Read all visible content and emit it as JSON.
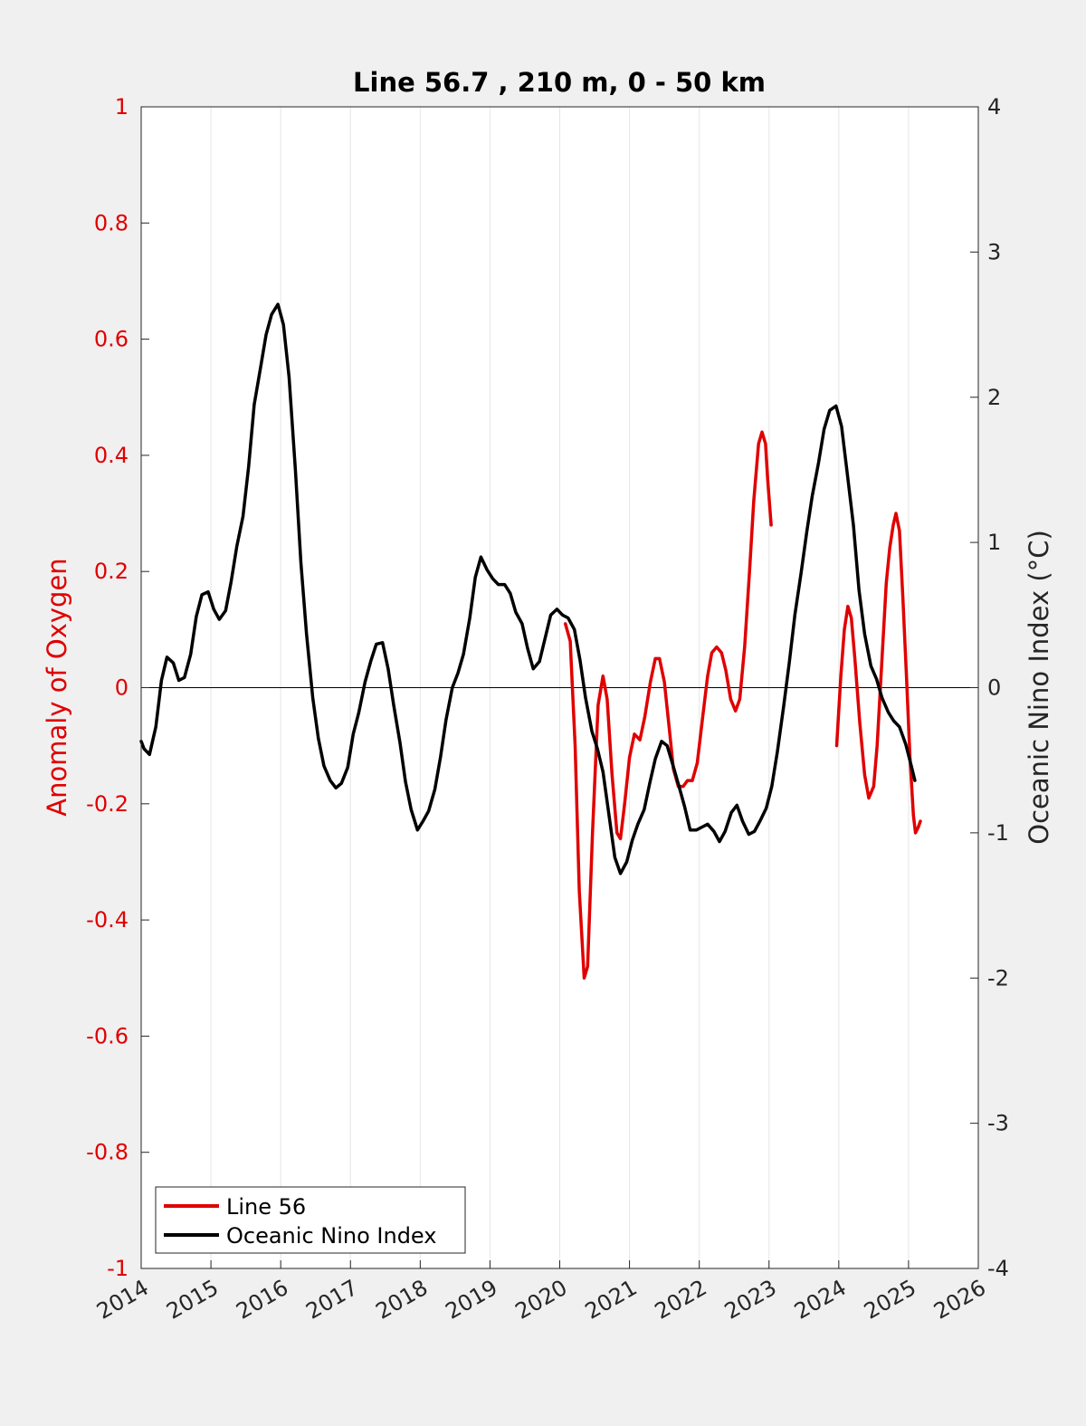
{
  "chart_data": {
    "type": "line",
    "title": "Line 56.7 , 210 m, 0 - 50 km",
    "ylabel_left": "Anomaly of Oxygen",
    "ylabel_right": "Oceanic Nino Index (°C)",
    "xlim": [
      2014,
      2026
    ],
    "ylim_left": [
      -1,
      1
    ],
    "ylim_right": [
      -4,
      4
    ],
    "x_ticks": [
      "2014",
      "2015",
      "2016",
      "2017",
      "2018",
      "2019",
      "2020",
      "2021",
      "2022",
      "2023",
      "2024",
      "2025",
      "2026"
    ],
    "y_left_ticks": [
      "-1",
      "-0.8",
      "-0.6",
      "-0.4",
      "-0.2",
      "0",
      "0.2",
      "0.4",
      "0.6",
      "0.8",
      "1"
    ],
    "y_right_ticks": [
      "-4",
      "-3",
      "-2",
      "-1",
      "0",
      "1",
      "2",
      "3",
      "4"
    ],
    "grid": "vertical",
    "zero_line": true,
    "legend_position": "bottom-left",
    "series": [
      {
        "name": "Line 56",
        "axis": "left",
        "color": "#e00000",
        "segments": [
          [
            [
              2020.08,
              0.11
            ],
            [
              2020.15,
              0.08
            ],
            [
              2020.22,
              -0.1
            ],
            [
              2020.28,
              -0.35
            ],
            [
              2020.35,
              -0.5
            ],
            [
              2020.4,
              -0.48
            ],
            [
              2020.47,
              -0.25
            ],
            [
              2020.55,
              -0.03
            ],
            [
              2020.62,
              0.02
            ],
            [
              2020.68,
              -0.02
            ],
            [
              2020.75,
              -0.15
            ],
            [
              2020.82,
              -0.25
            ],
            [
              2020.87,
              -0.26
            ],
            [
              2020.93,
              -0.2
            ],
            [
              2021.0,
              -0.12
            ],
            [
              2021.07,
              -0.08
            ],
            [
              2021.15,
              -0.09
            ],
            [
              2021.22,
              -0.05
            ],
            [
              2021.3,
              0.01
            ],
            [
              2021.37,
              0.05
            ],
            [
              2021.43,
              0.05
            ],
            [
              2021.5,
              0.01
            ],
            [
              2021.57,
              -0.07
            ],
            [
              2021.63,
              -0.14
            ],
            [
              2021.7,
              -0.17
            ],
            [
              2021.77,
              -0.17
            ],
            [
              2021.83,
              -0.16
            ],
            [
              2021.9,
              -0.16
            ],
            [
              2021.97,
              -0.13
            ],
            [
              2022.05,
              -0.05
            ],
            [
              2022.12,
              0.02
            ],
            [
              2022.18,
              0.06
            ],
            [
              2022.25,
              0.07
            ],
            [
              2022.32,
              0.06
            ],
            [
              2022.38,
              0.03
            ],
            [
              2022.45,
              -0.02
            ],
            [
              2022.52,
              -0.04
            ],
            [
              2022.58,
              -0.02
            ],
            [
              2022.65,
              0.07
            ],
            [
              2022.72,
              0.2
            ],
            [
              2022.78,
              0.32
            ],
            [
              2022.85,
              0.42
            ],
            [
              2022.9,
              0.44
            ],
            [
              2022.95,
              0.42
            ],
            [
              2022.98,
              0.36
            ],
            [
              2023.03,
              0.28
            ]
          ],
          [
            [
              2023.97,
              -0.1
            ],
            [
              2024.03,
              0.02
            ],
            [
              2024.08,
              0.1
            ],
            [
              2024.13,
              0.14
            ],
            [
              2024.18,
              0.12
            ],
            [
              2024.23,
              0.05
            ],
            [
              2024.3,
              -0.06
            ],
            [
              2024.37,
              -0.15
            ],
            [
              2024.43,
              -0.19
            ],
            [
              2024.5,
              -0.17
            ],
            [
              2024.55,
              -0.1
            ],
            [
              2024.62,
              0.05
            ],
            [
              2024.68,
              0.18
            ],
            [
              2024.73,
              0.24
            ],
            [
              2024.78,
              0.28
            ],
            [
              2024.82,
              0.3
            ],
            [
              2024.87,
              0.27
            ],
            [
              2024.92,
              0.15
            ],
            [
              2024.97,
              0.02
            ],
            [
              2025.02,
              -0.12
            ],
            [
              2025.07,
              -0.22
            ],
            [
              2025.1,
              -0.25
            ],
            [
              2025.14,
              -0.24
            ],
            [
              2025.17,
              -0.23
            ]
          ]
        ]
      },
      {
        "name": "Oceanic Nino Index",
        "axis": "right",
        "color": "#000000",
        "segments": [
          [
            [
              2014.0,
              -0.37
            ],
            [
              2014.04,
              -0.42
            ],
            [
              2014.12,
              -0.46
            ],
            [
              2014.21,
              -0.27
            ],
            [
              2014.29,
              0.05
            ],
            [
              2014.37,
              0.21
            ],
            [
              2014.46,
              0.17
            ],
            [
              2014.54,
              0.05
            ],
            [
              2014.62,
              0.07
            ],
            [
              2014.71,
              0.23
            ],
            [
              2014.79,
              0.49
            ],
            [
              2014.87,
              0.64
            ],
            [
              2014.96,
              0.66
            ],
            [
              2015.04,
              0.54
            ],
            [
              2015.12,
              0.47
            ],
            [
              2015.21,
              0.53
            ],
            [
              2015.29,
              0.73
            ],
            [
              2015.37,
              0.97
            ],
            [
              2015.46,
              1.18
            ],
            [
              2015.54,
              1.52
            ],
            [
              2015.62,
              1.95
            ],
            [
              2015.71,
              2.2
            ],
            [
              2015.79,
              2.43
            ],
            [
              2015.87,
              2.57
            ],
            [
              2015.96,
              2.64
            ],
            [
              2016.04,
              2.5
            ],
            [
              2016.12,
              2.14
            ],
            [
              2016.21,
              1.5
            ],
            [
              2016.29,
              0.86
            ],
            [
              2016.37,
              0.37
            ],
            [
              2016.46,
              -0.07
            ],
            [
              2016.54,
              -0.35
            ],
            [
              2016.62,
              -0.54
            ],
            [
              2016.71,
              -0.64
            ],
            [
              2016.79,
              -0.69
            ],
            [
              2016.87,
              -0.66
            ],
            [
              2016.96,
              -0.55
            ],
            [
              2017.04,
              -0.32
            ],
            [
              2017.12,
              -0.17
            ],
            [
              2017.21,
              0.04
            ],
            [
              2017.29,
              0.18
            ],
            [
              2017.37,
              0.3
            ],
            [
              2017.46,
              0.31
            ],
            [
              2017.54,
              0.13
            ],
            [
              2017.62,
              -0.12
            ],
            [
              2017.71,
              -0.38
            ],
            [
              2017.79,
              -0.65
            ],
            [
              2017.87,
              -0.84
            ],
            [
              2017.96,
              -0.98
            ],
            [
              2018.04,
              -0.92
            ],
            [
              2018.12,
              -0.85
            ],
            [
              2018.21,
              -0.7
            ],
            [
              2018.29,
              -0.48
            ],
            [
              2018.37,
              -0.22
            ],
            [
              2018.46,
              0.0
            ],
            [
              2018.54,
              0.1
            ],
            [
              2018.62,
              0.23
            ],
            [
              2018.71,
              0.48
            ],
            [
              2018.79,
              0.76
            ],
            [
              2018.87,
              0.9
            ],
            [
              2018.96,
              0.81
            ],
            [
              2019.04,
              0.75
            ],
            [
              2019.12,
              0.71
            ],
            [
              2019.21,
              0.71
            ],
            [
              2019.29,
              0.65
            ],
            [
              2019.37,
              0.52
            ],
            [
              2019.46,
              0.44
            ],
            [
              2019.54,
              0.27
            ],
            [
              2019.62,
              0.13
            ],
            [
              2019.71,
              0.18
            ],
            [
              2019.79,
              0.34
            ],
            [
              2019.87,
              0.5
            ],
            [
              2019.96,
              0.54
            ],
            [
              2020.04,
              0.5
            ],
            [
              2020.12,
              0.48
            ],
            [
              2020.21,
              0.4
            ],
            [
              2020.29,
              0.19
            ],
            [
              2020.37,
              -0.07
            ],
            [
              2020.46,
              -0.3
            ],
            [
              2020.54,
              -0.42
            ],
            [
              2020.62,
              -0.58
            ],
            [
              2020.71,
              -0.89
            ],
            [
              2020.79,
              -1.17
            ],
            [
              2020.87,
              -1.28
            ],
            [
              2020.96,
              -1.2
            ],
            [
              2021.04,
              -1.05
            ],
            [
              2021.12,
              -0.94
            ],
            [
              2021.21,
              -0.84
            ],
            [
              2021.29,
              -0.66
            ],
            [
              2021.37,
              -0.49
            ],
            [
              2021.46,
              -0.37
            ],
            [
              2021.54,
              -0.4
            ],
            [
              2021.62,
              -0.53
            ],
            [
              2021.71,
              -0.68
            ],
            [
              2021.79,
              -0.82
            ],
            [
              2021.87,
              -0.98
            ],
            [
              2021.96,
              -0.98
            ],
            [
              2022.04,
              -0.96
            ],
            [
              2022.12,
              -0.94
            ],
            [
              2022.21,
              -0.99
            ],
            [
              2022.29,
              -1.06
            ],
            [
              2022.37,
              -0.99
            ],
            [
              2022.46,
              -0.86
            ],
            [
              2022.54,
              -0.81
            ],
            [
              2022.62,
              -0.92
            ],
            [
              2022.71,
              -1.01
            ],
            [
              2022.79,
              -0.99
            ],
            [
              2022.87,
              -0.92
            ],
            [
              2022.96,
              -0.83
            ],
            [
              2023.04,
              -0.68
            ],
            [
              2023.12,
              -0.44
            ],
            [
              2023.21,
              -0.13
            ],
            [
              2023.29,
              0.17
            ],
            [
              2023.37,
              0.5
            ],
            [
              2023.46,
              0.79
            ],
            [
              2023.54,
              1.07
            ],
            [
              2023.62,
              1.32
            ],
            [
              2023.71,
              1.55
            ],
            [
              2023.79,
              1.78
            ],
            [
              2023.87,
              1.91
            ],
            [
              2023.96,
              1.94
            ],
            [
              2024.04,
              1.8
            ],
            [
              2024.12,
              1.48
            ],
            [
              2024.21,
              1.12
            ],
            [
              2024.29,
              0.67
            ],
            [
              2024.37,
              0.37
            ],
            [
              2024.46,
              0.15
            ],
            [
              2024.54,
              0.06
            ],
            [
              2024.62,
              -0.07
            ],
            [
              2024.71,
              -0.17
            ],
            [
              2024.79,
              -0.23
            ],
            [
              2024.87,
              -0.27
            ],
            [
              2024.96,
              -0.39
            ],
            [
              2025.04,
              -0.54
            ],
            [
              2025.09,
              -0.64
            ]
          ]
        ]
      }
    ]
  }
}
